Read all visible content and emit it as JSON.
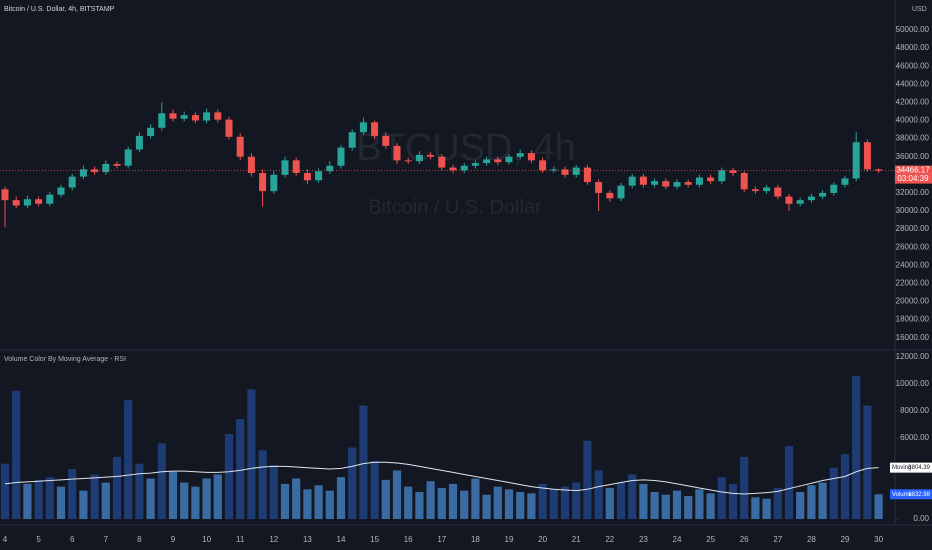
{
  "chart_data": [
    {
      "type": "candlestick",
      "title": "Bitcoin / U.S. Dollar, 4h, BITSTAMP",
      "currency": "USD",
      "watermark": "BTCUSD, 4h",
      "watermark_subtitle": "Bitcoin / U.S. Dollar",
      "countdown": "03:04:39",
      "up_color": "#26a69a",
      "down_color": "#ef5350",
      "ylim": [
        14860,
        53320
      ],
      "yticks": [
        {
          "value": 50000,
          "label": "50000.00"
        },
        {
          "value": 48000,
          "label": "48000.00"
        },
        {
          "value": 46000,
          "label": "46000.00"
        },
        {
          "value": 44000,
          "label": "44000.00"
        },
        {
          "value": 42000,
          "label": "42000.00"
        },
        {
          "value": 40000,
          "label": "40000.00"
        },
        {
          "value": 38000,
          "label": "38000.00"
        },
        {
          "value": 36000,
          "label": "36000.00"
        },
        {
          "value": 32000,
          "label": "32000.00"
        },
        {
          "value": 30000,
          "label": "30000.00"
        },
        {
          "value": 28000,
          "label": "28000.00"
        },
        {
          "value": 26000,
          "label": "26000.00"
        },
        {
          "value": 24000,
          "label": "24000.00"
        },
        {
          "value": 22000,
          "label": "22000.00"
        },
        {
          "value": 20000,
          "label": "20000.00"
        },
        {
          "value": 18000,
          "label": "18000.00"
        },
        {
          "value": 16000,
          "label": "16000.00"
        }
      ],
      "open": [
        32400,
        31200,
        30600,
        31300,
        30800,
        31800,
        32600,
        33800,
        34600,
        34300,
        35200,
        35000,
        36800,
        38300,
        39200,
        40800,
        40200,
        40600,
        40000,
        40900,
        40100,
        38200,
        36000,
        34200,
        32200,
        34000,
        35600,
        34200,
        33400,
        34400,
        35000,
        37000,
        38700,
        39800,
        38300,
        37200,
        35600,
        35500,
        36200,
        36000,
        34800,
        34500,
        35000,
        35300,
        35700,
        35400,
        36000,
        36400,
        35600,
        34500,
        34600,
        34000,
        34800,
        33200,
        32000,
        31400,
        32800,
        33800,
        32900,
        33300,
        32700,
        33200,
        32900,
        33700,
        33300,
        34500,
        34200,
        32400,
        32200,
        32600,
        31600,
        30800,
        31200,
        31600,
        32000,
        32900,
        33600,
        37600,
        34600
      ],
      "high": [
        32700,
        31600,
        31700,
        31600,
        32100,
        32900,
        34100,
        35000,
        34900,
        35600,
        35500,
        37100,
        38700,
        39600,
        42000,
        41200,
        41000,
        40900,
        41300,
        41200,
        40400,
        38600,
        36400,
        34600,
        34400,
        36000,
        35900,
        34600,
        34700,
        35500,
        37300,
        39000,
        40300,
        40000,
        38700,
        37500,
        35900,
        36600,
        36500,
        36300,
        35100,
        35300,
        35600,
        36000,
        36000,
        36300,
        36800,
        36700,
        35900,
        34900,
        34900,
        35100,
        35100,
        33500,
        32300,
        33100,
        34100,
        34100,
        33600,
        33600,
        33500,
        33500,
        34000,
        34000,
        34800,
        34800,
        34400,
        32700,
        32900,
        32900,
        31900,
        31500,
        31900,
        32300,
        33200,
        33900,
        38700,
        37900,
        34700
      ],
      "low": [
        28200,
        30300,
        30300,
        30500,
        30500,
        31500,
        32300,
        33500,
        34000,
        34000,
        34700,
        34700,
        36500,
        38000,
        38900,
        39900,
        39900,
        39700,
        39700,
        39800,
        37900,
        35600,
        33800,
        30500,
        31900,
        33700,
        33900,
        33000,
        33100,
        34100,
        34700,
        36700,
        38400,
        38000,
        36900,
        35200,
        35200,
        35200,
        35700,
        34500,
        34200,
        34200,
        34700,
        35000,
        35100,
        35100,
        35700,
        35300,
        34200,
        34200,
        33700,
        33700,
        32900,
        30000,
        31000,
        31100,
        32500,
        32600,
        32600,
        32400,
        32400,
        32600,
        32600,
        33000,
        33000,
        33900,
        32100,
        31900,
        31900,
        31300,
        30000,
        30500,
        30900,
        31300,
        31700,
        32600,
        33300,
        34300,
        34200
      ],
      "close": [
        31200,
        30600,
        31300,
        30800,
        31800,
        32600,
        33800,
        34600,
        34300,
        35200,
        35000,
        36800,
        38300,
        39200,
        40800,
        40200,
        40600,
        40000,
        40900,
        40100,
        38200,
        36000,
        34200,
        32200,
        34000,
        35600,
        34200,
        33400,
        34400,
        35000,
        37000,
        38700,
        39800,
        38300,
        37200,
        35600,
        35500,
        36200,
        36000,
        34800,
        34500,
        35000,
        35300,
        35700,
        35400,
        36000,
        36400,
        35600,
        34500,
        34600,
        34000,
        34800,
        33200,
        32000,
        31400,
        32800,
        33800,
        32900,
        33300,
        32700,
        33200,
        32900,
        33700,
        33300,
        34500,
        34200,
        32400,
        32200,
        32600,
        31600,
        30800,
        31200,
        31600,
        32000,
        32900,
        33600,
        37600,
        34600,
        34466.17
      ]
    },
    {
      "type": "bar",
      "title": "Volume Color By Moving Average - RSI",
      "categories": [
        "4",
        null,
        null,
        "5",
        null,
        null,
        "6",
        null,
        null,
        "7",
        null,
        null,
        "8",
        null,
        null,
        "9",
        null,
        null,
        "10",
        null,
        null,
        "11",
        null,
        null,
        "12",
        null,
        null,
        "13",
        null,
        null,
        "14",
        null,
        null,
        "15",
        null,
        null,
        "16",
        null,
        null,
        "17",
        null,
        null,
        "18",
        null,
        null,
        "19",
        null,
        null,
        "20",
        null,
        null,
        "21",
        null,
        null,
        "22",
        null,
        null,
        "23",
        null,
        null,
        "24",
        null,
        null,
        "25",
        null,
        null,
        "26",
        null,
        null,
        "27",
        null,
        null,
        "28",
        null,
        null,
        "29",
        null,
        null,
        "30"
      ],
      "ylim": [
        0,
        12370
      ],
      "yticks": [
        {
          "value": 12000,
          "label": "12000.00"
        },
        {
          "value": 10000,
          "label": "10000.00"
        },
        {
          "value": 8000,
          "label": "8000.00"
        },
        {
          "value": 6000,
          "label": "6000.00"
        },
        {
          "value": 0,
          "label": "0.00"
        }
      ],
      "series": [
        {
          "name": "Volume",
          "colors": {
            "above": "#1e3b73",
            "below": "#3a6ba3"
          },
          "values": [
            4100,
            9500,
            2600,
            2900,
            3100,
            2400,
            3700,
            2100,
            3300,
            2700,
            4600,
            8800,
            4100,
            3000,
            5600,
            3500,
            2700,
            2400,
            3000,
            3300,
            6300,
            7400,
            9600,
            5100,
            4000,
            2600,
            3000,
            2200,
            2500,
            2100,
            3100,
            5300,
            8400,
            4300,
            2900,
            3600,
            2400,
            2000,
            2800,
            2300,
            2600,
            2100,
            3000,
            1800,
            2400,
            2200,
            2000,
            1900,
            2600,
            2200,
            2400,
            2700,
            5800,
            3600,
            2300,
            2700,
            3300,
            2600,
            2000,
            1800,
            2100,
            1700,
            2200,
            1900,
            3100,
            2600,
            4600,
            1600,
            1500,
            2300,
            5400,
            2000,
            2500,
            2700,
            3800,
            4800,
            10600,
            8400,
            1832.98
          ]
        },
        {
          "name": "Moving",
          "color": "#e0e3eb",
          "values": [
            2600,
            2700,
            2750,
            2800,
            2850,
            2900,
            2950,
            3000,
            3050,
            3100,
            3150,
            3250,
            3350,
            3400,
            3500,
            3550,
            3550,
            3500,
            3450,
            3450,
            3500,
            3600,
            3750,
            3850,
            3900,
            3900,
            3850,
            3800,
            3750,
            3700,
            3750,
            3900,
            4100,
            4200,
            4200,
            4150,
            4050,
            3900,
            3750,
            3600,
            3450,
            3300,
            3150,
            3000,
            2850,
            2700,
            2550,
            2400,
            2300,
            2200,
            2150,
            2100,
            2200,
            2400,
            2550,
            2700,
            2850,
            2900,
            2850,
            2750,
            2600,
            2450,
            2300,
            2150,
            2000,
            1900,
            1850,
            1900,
            1950,
            2050,
            2250,
            2450,
            2650,
            2850,
            3000,
            3150,
            3500,
            3750,
            3804.39
          ]
        }
      ]
    }
  ]
}
